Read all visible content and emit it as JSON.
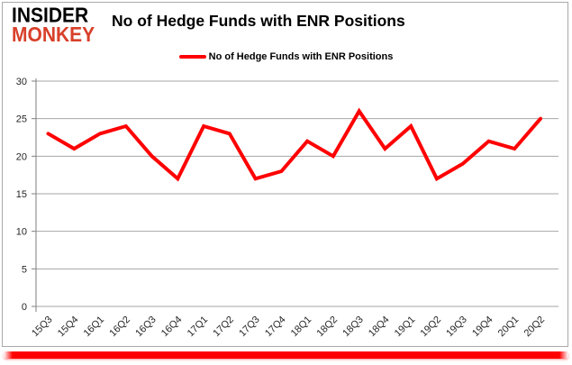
{
  "brand": {
    "line1": "INSIDER",
    "line2": "MONKEY"
  },
  "title": "No of Hedge Funds with ENR Positions",
  "legend": {
    "label": "No of Hedge Funds with ENR Positions"
  },
  "chart_data": {
    "type": "line",
    "title": "No of Hedge Funds with ENR Positions",
    "categories": [
      "15Q3",
      "15Q4",
      "16Q1",
      "16Q2",
      "16Q3",
      "16Q4",
      "17Q1",
      "17Q2",
      "17Q3",
      "17Q4",
      "18Q1",
      "18Q2",
      "18Q3",
      "18Q4",
      "19Q1",
      "19Q2",
      "19Q3",
      "19Q4",
      "20Q1",
      "20Q2"
    ],
    "values": [
      23,
      21,
      23,
      24,
      20,
      17,
      24,
      23,
      17,
      18,
      22,
      20,
      26,
      21,
      24,
      17,
      19,
      22,
      21,
      25
    ],
    "xlabel": "",
    "ylabel": "",
    "ylim": [
      0,
      30
    ],
    "yticks": [
      0,
      5,
      10,
      15,
      20,
      25,
      30
    ],
    "grid": true,
    "legend_position": "top-center",
    "line_color": "#ff0000",
    "gridline_color": "#a6a6a6",
    "axis_color": "#7f7f7f",
    "tick_label_color": "#262626"
  },
  "colors": {
    "logo_red": "#d8402a",
    "accent_red": "#ff0000",
    "frame_border": "#a9a9a9"
  }
}
